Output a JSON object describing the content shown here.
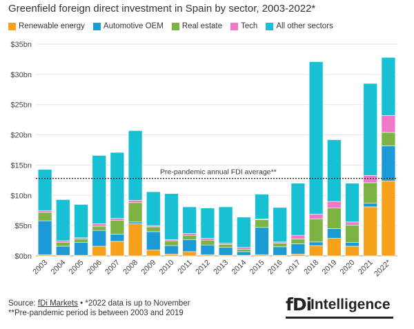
{
  "title": "Greenfield foreign direct investment in Spain by sector, 2003-2022*",
  "footer": {
    "source_prefix": "Source: ",
    "source_link": "fDi Markets",
    "source_note": " • *2022 data is up to November",
    "note2": "**Pre-pandemic period is between 2003 and 2019"
  },
  "logo": {
    "mark": "fDi",
    "word": "Intelligence"
  },
  "chart_data": {
    "type": "bar",
    "stacked": true,
    "categories": [
      "2003",
      "2004",
      "2005",
      "2006",
      "2007",
      "2008",
      "2009",
      "2010",
      "2011",
      "2012",
      "2013",
      "2014",
      "2015",
      "2016",
      "2017",
      "2018",
      "2019",
      "2020",
      "2021",
      "2022*"
    ],
    "series": [
      {
        "name": "Renewable energy",
        "color": "#f7a11a",
        "values": [
          0.2,
          0.1,
          0.1,
          1.6,
          2.4,
          5.3,
          1.0,
          0.3,
          0.7,
          0.2,
          0.1,
          0.1,
          0.2,
          0.1,
          0.3,
          1.7,
          2.9,
          1.6,
          8.1,
          12.4
        ]
      },
      {
        "name": "Automotive OEM",
        "color": "#1b9ad6",
        "values": [
          5.6,
          1.5,
          2.1,
          2.6,
          1.2,
          0.3,
          3.0,
          1.4,
          2.0,
          1.6,
          1.3,
          0.6,
          4.5,
          1.4,
          1.7,
          0.6,
          1.6,
          0.6,
          0.6,
          5.8
        ]
      },
      {
        "name": "Real estate",
        "color": "#7cb342",
        "values": [
          1.4,
          0.6,
          0.6,
          0.7,
          2.3,
          3.2,
          0.8,
          0.8,
          0.7,
          0.8,
          0.5,
          0.4,
          1.3,
          0.6,
          0.8,
          3.8,
          3.4,
          2.9,
          3.4,
          2.2
        ]
      },
      {
        "name": "Tech",
        "color": "#f078c8",
        "values": [
          0.3,
          0.3,
          0.2,
          0.4,
          0.3,
          0.4,
          0.2,
          0.2,
          0.3,
          0.3,
          0.2,
          0.3,
          0.1,
          0.2,
          0.6,
          0.8,
          1.1,
          0.5,
          1.2,
          2.8
        ]
      },
      {
        "name": "All other sectors",
        "color": "#17c0d3",
        "values": [
          6.8,
          6.8,
          5.5,
          11.3,
          10.9,
          11.5,
          5.6,
          7.6,
          4.4,
          5.0,
          6.0,
          5.0,
          4.1,
          5.7,
          8.6,
          25.2,
          10.2,
          6.4,
          15.2,
          9.6
        ]
      }
    ],
    "ylim": [
      0,
      35
    ],
    "yticks": [
      0,
      5,
      10,
      15,
      20,
      25,
      30,
      35
    ],
    "ytick_labels": [
      "$0bn",
      "$5bn",
      "$10bn",
      "$15bn",
      "$20bn",
      "$25bn",
      "$30bn",
      "$35bn"
    ],
    "reference_line": {
      "value": 12.8,
      "label": "Pre-pandemic annual FDI average**"
    },
    "grid": true
  }
}
